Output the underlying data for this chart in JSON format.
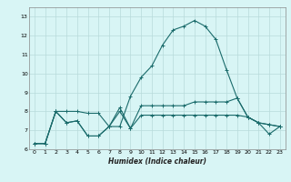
{
  "xlabel": "Humidex (Indice chaleur)",
  "x": [
    0,
    1,
    2,
    3,
    4,
    5,
    6,
    7,
    8,
    9,
    10,
    11,
    12,
    13,
    14,
    15,
    16,
    17,
    18,
    19,
    20,
    21,
    22,
    23
  ],
  "line1": [
    6.3,
    6.3,
    8.0,
    7.4,
    7.5,
    6.7,
    6.7,
    7.2,
    7.2,
    8.8,
    9.8,
    10.4,
    11.5,
    12.3,
    12.5,
    12.8,
    12.5,
    11.8,
    10.2,
    8.7,
    7.7,
    7.4,
    6.8,
    7.2
  ],
  "line2": [
    6.3,
    6.3,
    8.0,
    8.0,
    8.0,
    7.9,
    7.9,
    7.2,
    8.2,
    7.1,
    8.3,
    8.3,
    8.3,
    8.3,
    8.3,
    8.5,
    8.5,
    8.5,
    8.5,
    8.7,
    7.7,
    7.4,
    7.3,
    7.2
  ],
  "line3": [
    6.3,
    6.3,
    8.0,
    7.4,
    7.5,
    6.7,
    6.7,
    7.2,
    8.0,
    7.1,
    7.8,
    7.8,
    7.8,
    7.8,
    7.8,
    7.8,
    7.8,
    7.8,
    7.8,
    7.8,
    7.7,
    7.4,
    7.3,
    7.2
  ],
  "line_color": "#1a6b6b",
  "bg_color": "#d8f5f5",
  "grid_color": "#b8dada",
  "ylim": [
    6,
    13.5
  ],
  "xlim": [
    -0.5,
    23.5
  ],
  "yticks": [
    6,
    7,
    8,
    9,
    10,
    11,
    12,
    13
  ],
  "xticks": [
    0,
    1,
    2,
    3,
    4,
    5,
    6,
    7,
    8,
    9,
    10,
    11,
    12,
    13,
    14,
    15,
    16,
    17,
    18,
    19,
    20,
    21,
    22,
    23
  ]
}
